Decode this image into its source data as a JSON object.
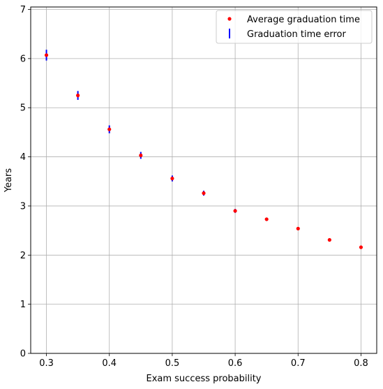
{
  "chart_data": {
    "type": "scatter",
    "xlabel": "Exam success probability",
    "ylabel": "Years",
    "xlim": [
      0.275,
      0.825
    ],
    "ylim": [
      0,
      7.05
    ],
    "x_ticks": [
      "0.3",
      "0.4",
      "0.5",
      "0.6",
      "0.7",
      "0.8"
    ],
    "y_ticks": [
      "0",
      "1",
      "2",
      "3",
      "4",
      "5",
      "6",
      "7"
    ],
    "grid": true,
    "legend_position": "top-right",
    "series": [
      {
        "name": "Average graduation time",
        "color": "#ff0000",
        "marker": "point",
        "x": [
          0.3,
          0.35,
          0.4,
          0.45,
          0.5,
          0.55,
          0.6,
          0.65,
          0.7,
          0.75,
          0.8
        ],
        "y": [
          6.07,
          5.25,
          4.56,
          4.03,
          3.56,
          3.26,
          2.9,
          2.73,
          2.54,
          2.31,
          2.16
        ]
      },
      {
        "name": "Graduation time error",
        "color": "#0000ff",
        "marker": "errorbar",
        "x": [
          0.3,
          0.35,
          0.4,
          0.45,
          0.5,
          0.55,
          0.6,
          0.65,
          0.7,
          0.75,
          0.8
        ],
        "err": [
          0.11,
          0.09,
          0.08,
          0.07,
          0.06,
          0.05,
          0.04,
          0.035,
          0.03,
          0.03,
          0.03
        ]
      }
    ]
  }
}
